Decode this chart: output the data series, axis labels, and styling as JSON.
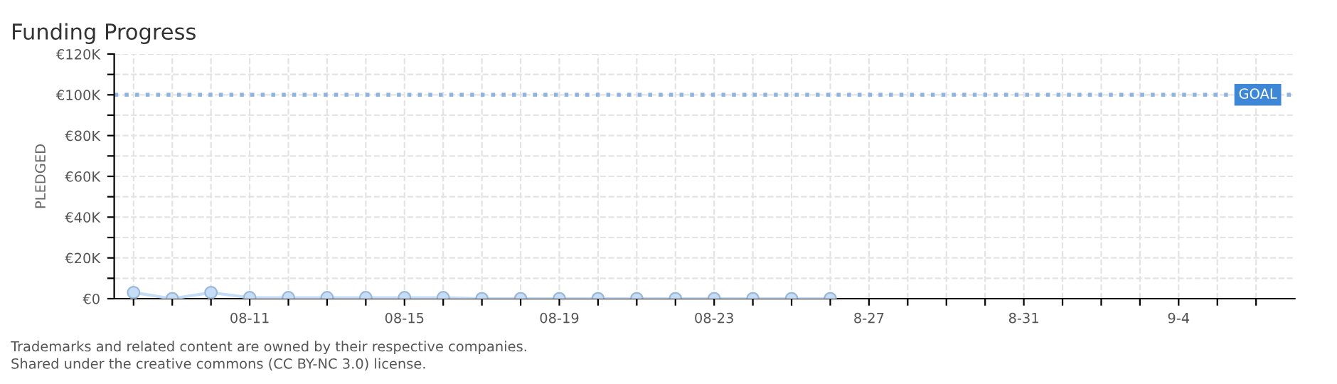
{
  "chart_data": {
    "type": "line",
    "title": "Funding Progress",
    "ylabel": "PLEDGED",
    "categories": [
      null,
      null,
      null,
      "08-11",
      null,
      null,
      null,
      "08-15",
      null,
      null,
      null,
      "08-19",
      null,
      null,
      null,
      "08-23",
      null,
      null,
      null,
      "8-27",
      null,
      null,
      null,
      "8-31",
      null,
      null,
      null,
      "9-4",
      null,
      null
    ],
    "series": [
      {
        "color": "#c5ddf7",
        "values": [
          3000,
          0,
          3000,
          500,
          500,
          500,
          500,
          500,
          500,
          0,
          0,
          0,
          0,
          0,
          0,
          0,
          0,
          0,
          0,
          null,
          null,
          null,
          null,
          null,
          null,
          null,
          null,
          null,
          null,
          null
        ]
      }
    ],
    "marker": "circle",
    "line_style": "solid",
    "ylim": [
      0,
      120000
    ],
    "yticks": [
      {
        "value": 0,
        "label": "€0"
      },
      {
        "value": 10000,
        "label": null
      },
      {
        "value": 20000,
        "label": "€20K"
      },
      {
        "value": 30000,
        "label": null
      },
      {
        "value": 40000,
        "label": "€40K"
      },
      {
        "value": 50000,
        "label": null
      },
      {
        "value": 60000,
        "label": "€60K"
      },
      {
        "value": 70000,
        "label": null
      },
      {
        "value": 80000,
        "label": "€80K"
      },
      {
        "value": 90000,
        "label": null
      },
      {
        "value": 100000,
        "label": "€100K"
      },
      {
        "value": 110000,
        "label": null
      },
      {
        "value": 120000,
        "label": "€120K"
      }
    ],
    "grid": true,
    "ref_lines": [
      {
        "axis": "y",
        "value": 100000,
        "label": "GOAL",
        "color": "#8fb4e0",
        "line_style": "dotted"
      }
    ],
    "annotations": [
      "Trademarks and related content are owned by their respective companies.",
      "Shared under the creative commons (CC BY-NC 3.0) license."
    ]
  }
}
